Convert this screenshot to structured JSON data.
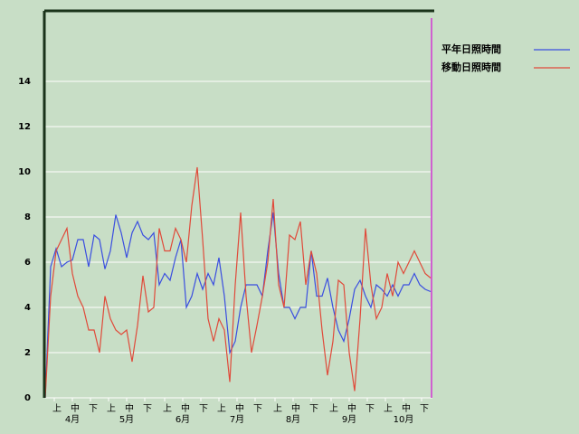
{
  "chart_data": {
    "type": "line",
    "x": [
      0,
      3,
      6,
      9,
      12,
      15,
      18,
      21,
      24,
      27,
      30,
      33,
      36,
      39,
      42,
      45,
      48,
      51,
      54,
      57,
      60,
      63,
      66,
      69,
      72,
      75,
      78,
      81,
      84,
      87,
      90,
      93,
      96,
      99,
      102,
      105,
      108,
      111,
      114,
      117,
      120,
      123,
      126,
      129,
      132,
      135,
      138,
      141,
      144,
      147,
      150,
      153,
      156,
      159,
      162,
      165,
      168,
      171,
      174,
      177,
      180,
      183,
      186,
      189,
      192,
      195,
      198,
      201,
      204,
      207,
      210,
      213
    ],
    "series": [
      {
        "name": "平年日照時間",
        "color": "#3a4ee0",
        "values": [
          0,
          5.8,
          6.6,
          5.8,
          6.0,
          6.1,
          7.0,
          7.0,
          5.8,
          7.2,
          7.0,
          5.7,
          6.5,
          8.1,
          7.3,
          6.2,
          7.3,
          7.8,
          7.2,
          7.0,
          7.3,
          5.0,
          5.5,
          5.2,
          6.2,
          7.0,
          4.0,
          4.5,
          5.5,
          4.8,
          5.5,
          5.0,
          6.2,
          4.5,
          2.0,
          2.5,
          4.0,
          5.0,
          5.0,
          5.0,
          4.5,
          6.5,
          8.2,
          5.5,
          4.0,
          4.0,
          3.5,
          4.0,
          4.0,
          6.5,
          4.5,
          4.5,
          5.3,
          4.0,
          3.0,
          2.5,
          3.5,
          4.8,
          5.2,
          4.5,
          4.0,
          5.0,
          4.8,
          4.5,
          5.0,
          4.5,
          5.0,
          5.0,
          5.5,
          5.0,
          4.8,
          4.7
        ]
      },
      {
        "name": "移動日照時間",
        "color": "#e04a3a",
        "values": [
          0,
          4.5,
          6.5,
          7.0,
          7.5,
          5.5,
          4.5,
          4.0,
          3.0,
          3.0,
          2.0,
          4.5,
          3.5,
          3.0,
          2.8,
          3.0,
          1.6,
          3.2,
          5.4,
          3.8,
          4.0,
          7.5,
          6.5,
          6.5,
          7.5,
          7.0,
          6.0,
          8.5,
          10.2,
          7.0,
          3.5,
          2.5,
          3.5,
          3.0,
          0.7,
          5.0,
          8.2,
          4.5,
          2.0,
          3.2,
          4.5,
          6.0,
          8.8,
          5.0,
          4.0,
          7.2,
          7.0,
          7.8,
          5.0,
          6.5,
          5.5,
          3.0,
          1.0,
          2.5,
          5.2,
          5.0,
          2.0,
          0.3,
          3.5,
          7.5,
          5.0,
          3.5,
          4.0,
          5.5,
          4.5,
          6.0,
          5.5,
          6.0,
          6.5,
          6.0,
          5.5,
          5.3
        ]
      }
    ],
    "xlim": [
      0,
      214
    ],
    "xticks": [
      {
        "value": 5,
        "label": "上"
      },
      {
        "value": 15,
        "label": "中"
      },
      {
        "value": 25,
        "label": "下"
      },
      {
        "value": 35,
        "label": "上"
      },
      {
        "value": 45,
        "label": "中"
      },
      {
        "value": 55,
        "label": "下"
      },
      {
        "value": 66,
        "label": "上"
      },
      {
        "value": 76,
        "label": "中"
      },
      {
        "value": 86,
        "label": "下"
      },
      {
        "value": 96,
        "label": "上"
      },
      {
        "value": 106,
        "label": "中"
      },
      {
        "value": 116,
        "label": "下"
      },
      {
        "value": 127,
        "label": "上"
      },
      {
        "value": 137,
        "label": "中"
      },
      {
        "value": 147,
        "label": "下"
      },
      {
        "value": 158,
        "label": "上"
      },
      {
        "value": 168,
        "label": "中"
      },
      {
        "value": 178,
        "label": "下"
      },
      {
        "value": 188,
        "label": "上"
      },
      {
        "value": 198,
        "label": "中"
      },
      {
        "value": 208,
        "label": "下"
      }
    ],
    "month_labels": [
      {
        "value": 15,
        "label": "4月"
      },
      {
        "value": 45,
        "label": "5月"
      },
      {
        "value": 76,
        "label": "6月"
      },
      {
        "value": 106,
        "label": "7月"
      },
      {
        "value": 137,
        "label": "8月"
      },
      {
        "value": 168,
        "label": "9月"
      },
      {
        "value": 198,
        "label": "10月"
      }
    ],
    "ylim": [
      0,
      17.12
    ],
    "yticks": [
      0,
      2,
      4,
      6,
      8,
      10,
      12,
      14
    ],
    "grid": true
  }
}
